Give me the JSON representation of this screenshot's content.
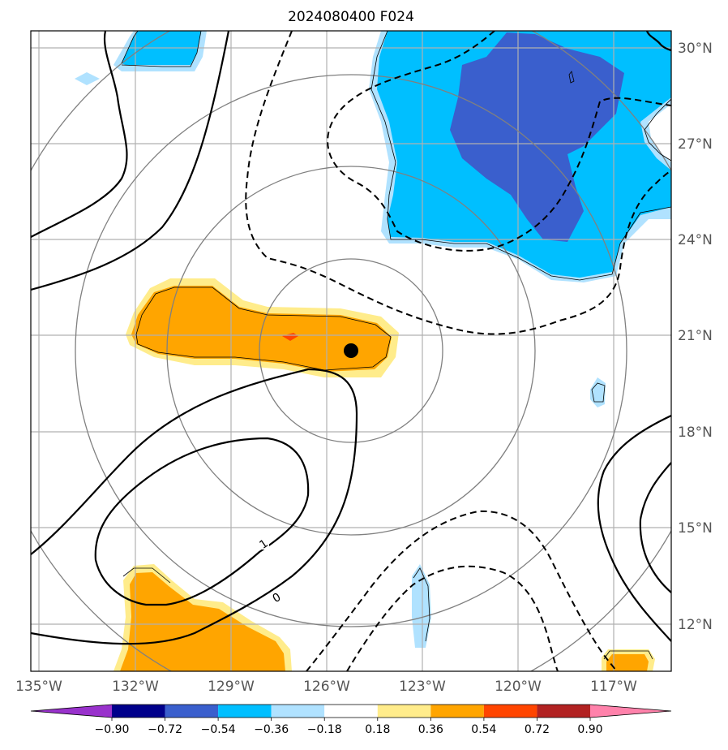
{
  "title": "2024080400 F024",
  "map": {
    "lon_labels": [
      "135°W",
      "132°W",
      "129°W",
      "126°W",
      "123°W",
      "120°W",
      "117°W"
    ],
    "lat_labels": [
      "30°N",
      "27°N",
      "24°N",
      "21°N",
      "18°N",
      "15°N",
      "12°N"
    ],
    "contour_labels": [
      "1",
      "0"
    ],
    "center_marker": {
      "lon": -125.3,
      "lat": 20.6,
      "label": ""
    },
    "fill_colors": {
      "strong_neg": "#3a5fcd",
      "mid_neg": "#00bfff",
      "weak_neg": "#b0e2ff",
      "weak_pos": "#ffec8b",
      "mid_pos": "#ffa500",
      "strong_pos": "#ff4500"
    }
  },
  "colorbar": {
    "tick_labels": [
      "−0.90",
      "−0.72",
      "−0.54",
      "−0.36",
      "−0.18",
      "0.18",
      "0.36",
      "0.54",
      "0.72",
      "0.90"
    ],
    "colors": [
      "#9932cc",
      "#00008b",
      "#3a5fcd",
      "#00bfff",
      "#b0e2ff",
      "#ffffff",
      "#ffec8b",
      "#ffa500",
      "#ff4500",
      "#b22222",
      "#ff82ab"
    ],
    "extend": "both"
  }
}
